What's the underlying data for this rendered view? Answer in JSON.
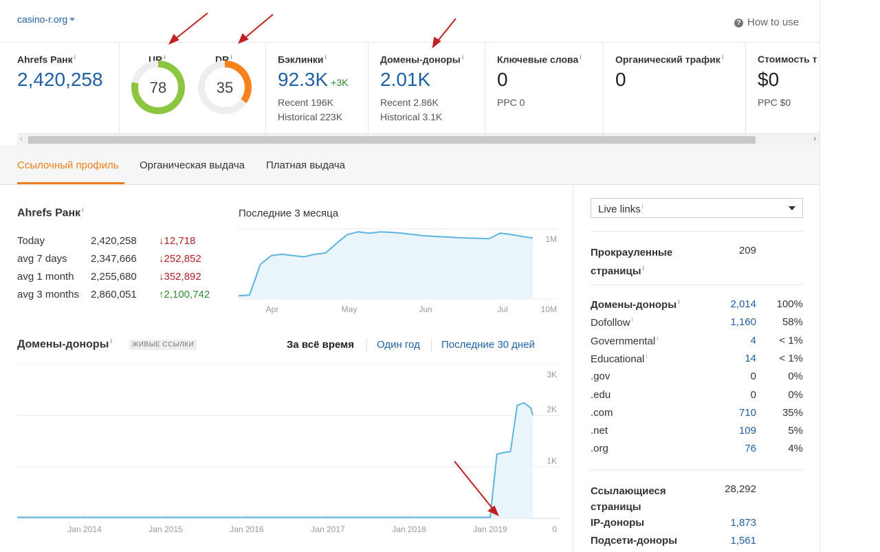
{
  "header": {
    "domain": "casino-r.org",
    "how_to_use": "How to use"
  },
  "metrics": {
    "ahrefs_rank": {
      "label": "Ahrefs Ранк",
      "value": "2,420,258"
    },
    "ur": {
      "label": "UR",
      "value": "78",
      "fill": 0.78,
      "color": "#8cc640"
    },
    "dr": {
      "label": "DR",
      "value": "35",
      "fill": 0.35,
      "color": "#f7821b"
    },
    "backlinks": {
      "label": "Бэклинки",
      "value": "92.3K",
      "delta": "+3K",
      "recent": "Recent 196K",
      "historical": "Historical 223K"
    },
    "ref_domains": {
      "label": "Домены-доноры",
      "value": "2.01K",
      "recent": "Recent 2.86K",
      "historical": "Historical 3.1K"
    },
    "keywords": {
      "label": "Ключевые слова",
      "value": "0",
      "ppc": "PPC 0"
    },
    "organic": {
      "label": "Органический трафик",
      "value": "0"
    },
    "cost": {
      "label": "Стоимость т",
      "value": "$0",
      "ppc": "PPC $0"
    }
  },
  "tabs": [
    "Ссылочный профиль",
    "Органическая выдача",
    "Платная выдача"
  ],
  "rank_section": {
    "title": "Ахрефс Ранк",
    "title_exact": "Ahrefs Ранк",
    "rows": [
      {
        "label": "Today",
        "value": "2,420,258",
        "change": "↓12,718",
        "dir": "down"
      },
      {
        "label": "avg 7 days",
        "value": "2,347,666",
        "change": "↓252,852",
        "dir": "down"
      },
      {
        "label": "avg 1 month",
        "value": "2,255,680",
        "change": "↓352,892",
        "dir": "down"
      },
      {
        "label": "avg 3 months",
        "value": "2,860,051",
        "change": "↑2,100,742",
        "dir": "up"
      }
    ],
    "chart_title": "Последние 3 месяца"
  },
  "domains_section": {
    "title": "Домены-доноры",
    "badge": "ЖИВЫЕ ССЫЛКИ",
    "periods": [
      "За всё время",
      "Один год",
      "Последние 30 дней"
    ]
  },
  "chart_data": [
    {
      "type": "area",
      "title": "Последние 3 месяца",
      "xlabel": "",
      "ylabel": "",
      "x_ticks": [
        "Apr",
        "May",
        "Jun",
        "Jul"
      ],
      "y_ticks": [
        "1M",
        "10M"
      ],
      "scale": "log-inverted",
      "color": "#5bb5de",
      "series": [
        {
          "values": [
            9.0,
            8.8,
            3.2,
            2.4,
            2.3,
            2.4,
            2.5,
            2.3,
            2.2,
            1.6,
            1.2,
            1.1,
            1.15,
            1.1,
            1.12,
            1.15,
            1.2,
            1.25,
            1.28,
            1.3,
            1.33,
            1.35,
            1.36,
            1.38,
            1.15,
            1.2,
            1.28,
            1.35
          ]
        }
      ]
    },
    {
      "type": "area",
      "title": "Домены-доноры",
      "xlabel": "",
      "ylabel": "",
      "x_ticks": [
        "Jan 2014",
        "Jan 2015",
        "Jan 2016",
        "Jan 2017",
        "Jan 2018",
        "Jan 2019"
      ],
      "y_ticks": [
        "0",
        "1K",
        "2K",
        "3K"
      ],
      "ylim": [
        0,
        3000
      ],
      "color": "#5bb5de",
      "series": [
        {
          "x": [
            "2013-03",
            "2019-01",
            "2019-02",
            "2019-03",
            "2019-04",
            "2019-05",
            "2019-06",
            "2019-07",
            "2019-08"
          ],
          "values": [
            20,
            20,
            1250,
            1280,
            1300,
            2200,
            2250,
            2150,
            2010
          ]
        }
      ]
    }
  ],
  "panel": {
    "select": "Live links",
    "crawled": {
      "label": "Прокраулённые страницы",
      "label1": "Прокрауленные",
      "label2": "страницы",
      "value": "209"
    },
    "rows": [
      {
        "label": "Домены-доноры",
        "value": "2,014",
        "pct": "100%",
        "bold": true,
        "link": true,
        "info": true
      },
      {
        "label": "Dofollow",
        "value": "1,160",
        "pct": "58%",
        "link": true,
        "info": true
      },
      {
        "label": "Governmental",
        "value": "4",
        "pct": "< 1%",
        "link": true,
        "info": true
      },
      {
        "label": "Educational",
        "value": "14",
        "pct": "< 1%",
        "link": true,
        "info": true
      },
      {
        "label": ".gov",
        "value": "0",
        "pct": "0%"
      },
      {
        "label": ".edu",
        "value": "0",
        "pct": "0%"
      },
      {
        "label": ".com",
        "value": "710",
        "pct": "35%",
        "link": true
      },
      {
        "label": ".net",
        "value": "109",
        "pct": "5%",
        "link": true
      },
      {
        "label": ".org",
        "value": "76",
        "pct": "4%",
        "link": true
      }
    ],
    "ref_pages": {
      "label1": "Ссылающиеся",
      "label2": "страницы",
      "value": "28,292"
    },
    "ip": {
      "label": "IP-доноры",
      "value": "1,873"
    },
    "subnets": {
      "label": "Подсети-доноры",
      "value": "1,561"
    }
  }
}
